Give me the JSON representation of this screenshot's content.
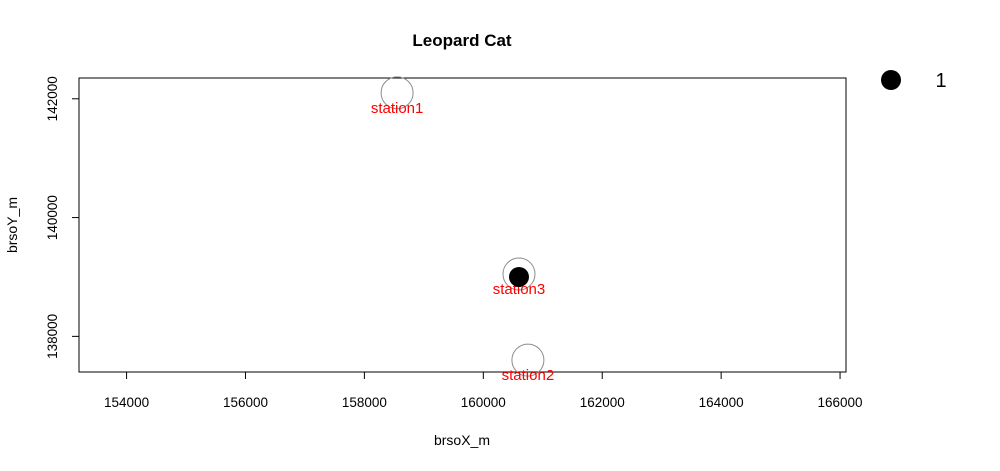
{
  "chart_data": {
    "type": "scatter",
    "title": "Leopard Cat",
    "xlabel": "brsoX_m",
    "ylabel": "brsoY_m",
    "xlim": [
      153200,
      166100
    ],
    "ylim": [
      137400,
      142350
    ],
    "xticks": [
      154000,
      156000,
      158000,
      160000,
      162000,
      164000,
      166000
    ],
    "yticks": [
      138000,
      140000,
      142000
    ],
    "stations": [
      {
        "name": "station1",
        "x": 158550,
        "y": 142100
      },
      {
        "name": "station2",
        "x": 160750,
        "y": 137600
      },
      {
        "name": "station3",
        "x": 160600,
        "y": 139050
      }
    ],
    "detections": [
      {
        "station": "station3",
        "x": 160600,
        "y": 139000,
        "value": 1
      }
    ],
    "legend": {
      "position": "right",
      "entries": [
        {
          "label": "1"
        }
      ]
    },
    "station_circle_color": "#8c8c8c",
    "station_label_color": "#ff0000",
    "detection_color": "#000000"
  }
}
